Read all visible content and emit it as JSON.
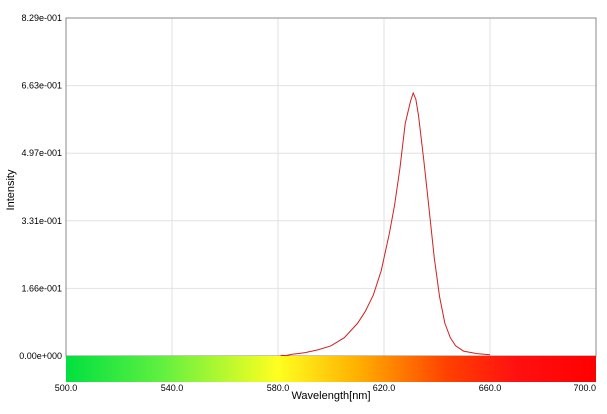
{
  "chart_data": {
    "type": "line",
    "xlabel": "Wavelength[nm]",
    "ylabel": "Intensity",
    "xlim": [
      500,
      700
    ],
    "ylim": [
      0,
      0.829
    ],
    "x_ticks": [
      "500.0",
      "540.0",
      "580.0",
      "620.0",
      "660.0",
      "700.0"
    ],
    "y_ticks": [
      "0.00e+000",
      "1.66e-001",
      "3.31e-001",
      "4.97e-001",
      "6.63e-001",
      "8.29e-001"
    ],
    "grid": true,
    "legend": "none",
    "line_color": "#d02020",
    "series": [
      {
        "x": [
          581,
          583,
          585,
          590,
          595,
          600,
          605,
          610,
          613,
          616,
          619,
          622,
          624,
          626,
          628,
          630,
          631,
          632,
          633,
          635,
          637,
          639,
          641,
          643,
          645,
          647,
          650,
          655,
          660
        ],
        "y": [
          0.002,
          0.001,
          0.004,
          0.008,
          0.015,
          0.025,
          0.045,
          0.08,
          0.11,
          0.15,
          0.21,
          0.3,
          0.37,
          0.46,
          0.57,
          0.625,
          0.645,
          0.63,
          0.59,
          0.48,
          0.36,
          0.24,
          0.145,
          0.08,
          0.045,
          0.025,
          0.012,
          0.006,
          0.003
        ]
      }
    ]
  }
}
